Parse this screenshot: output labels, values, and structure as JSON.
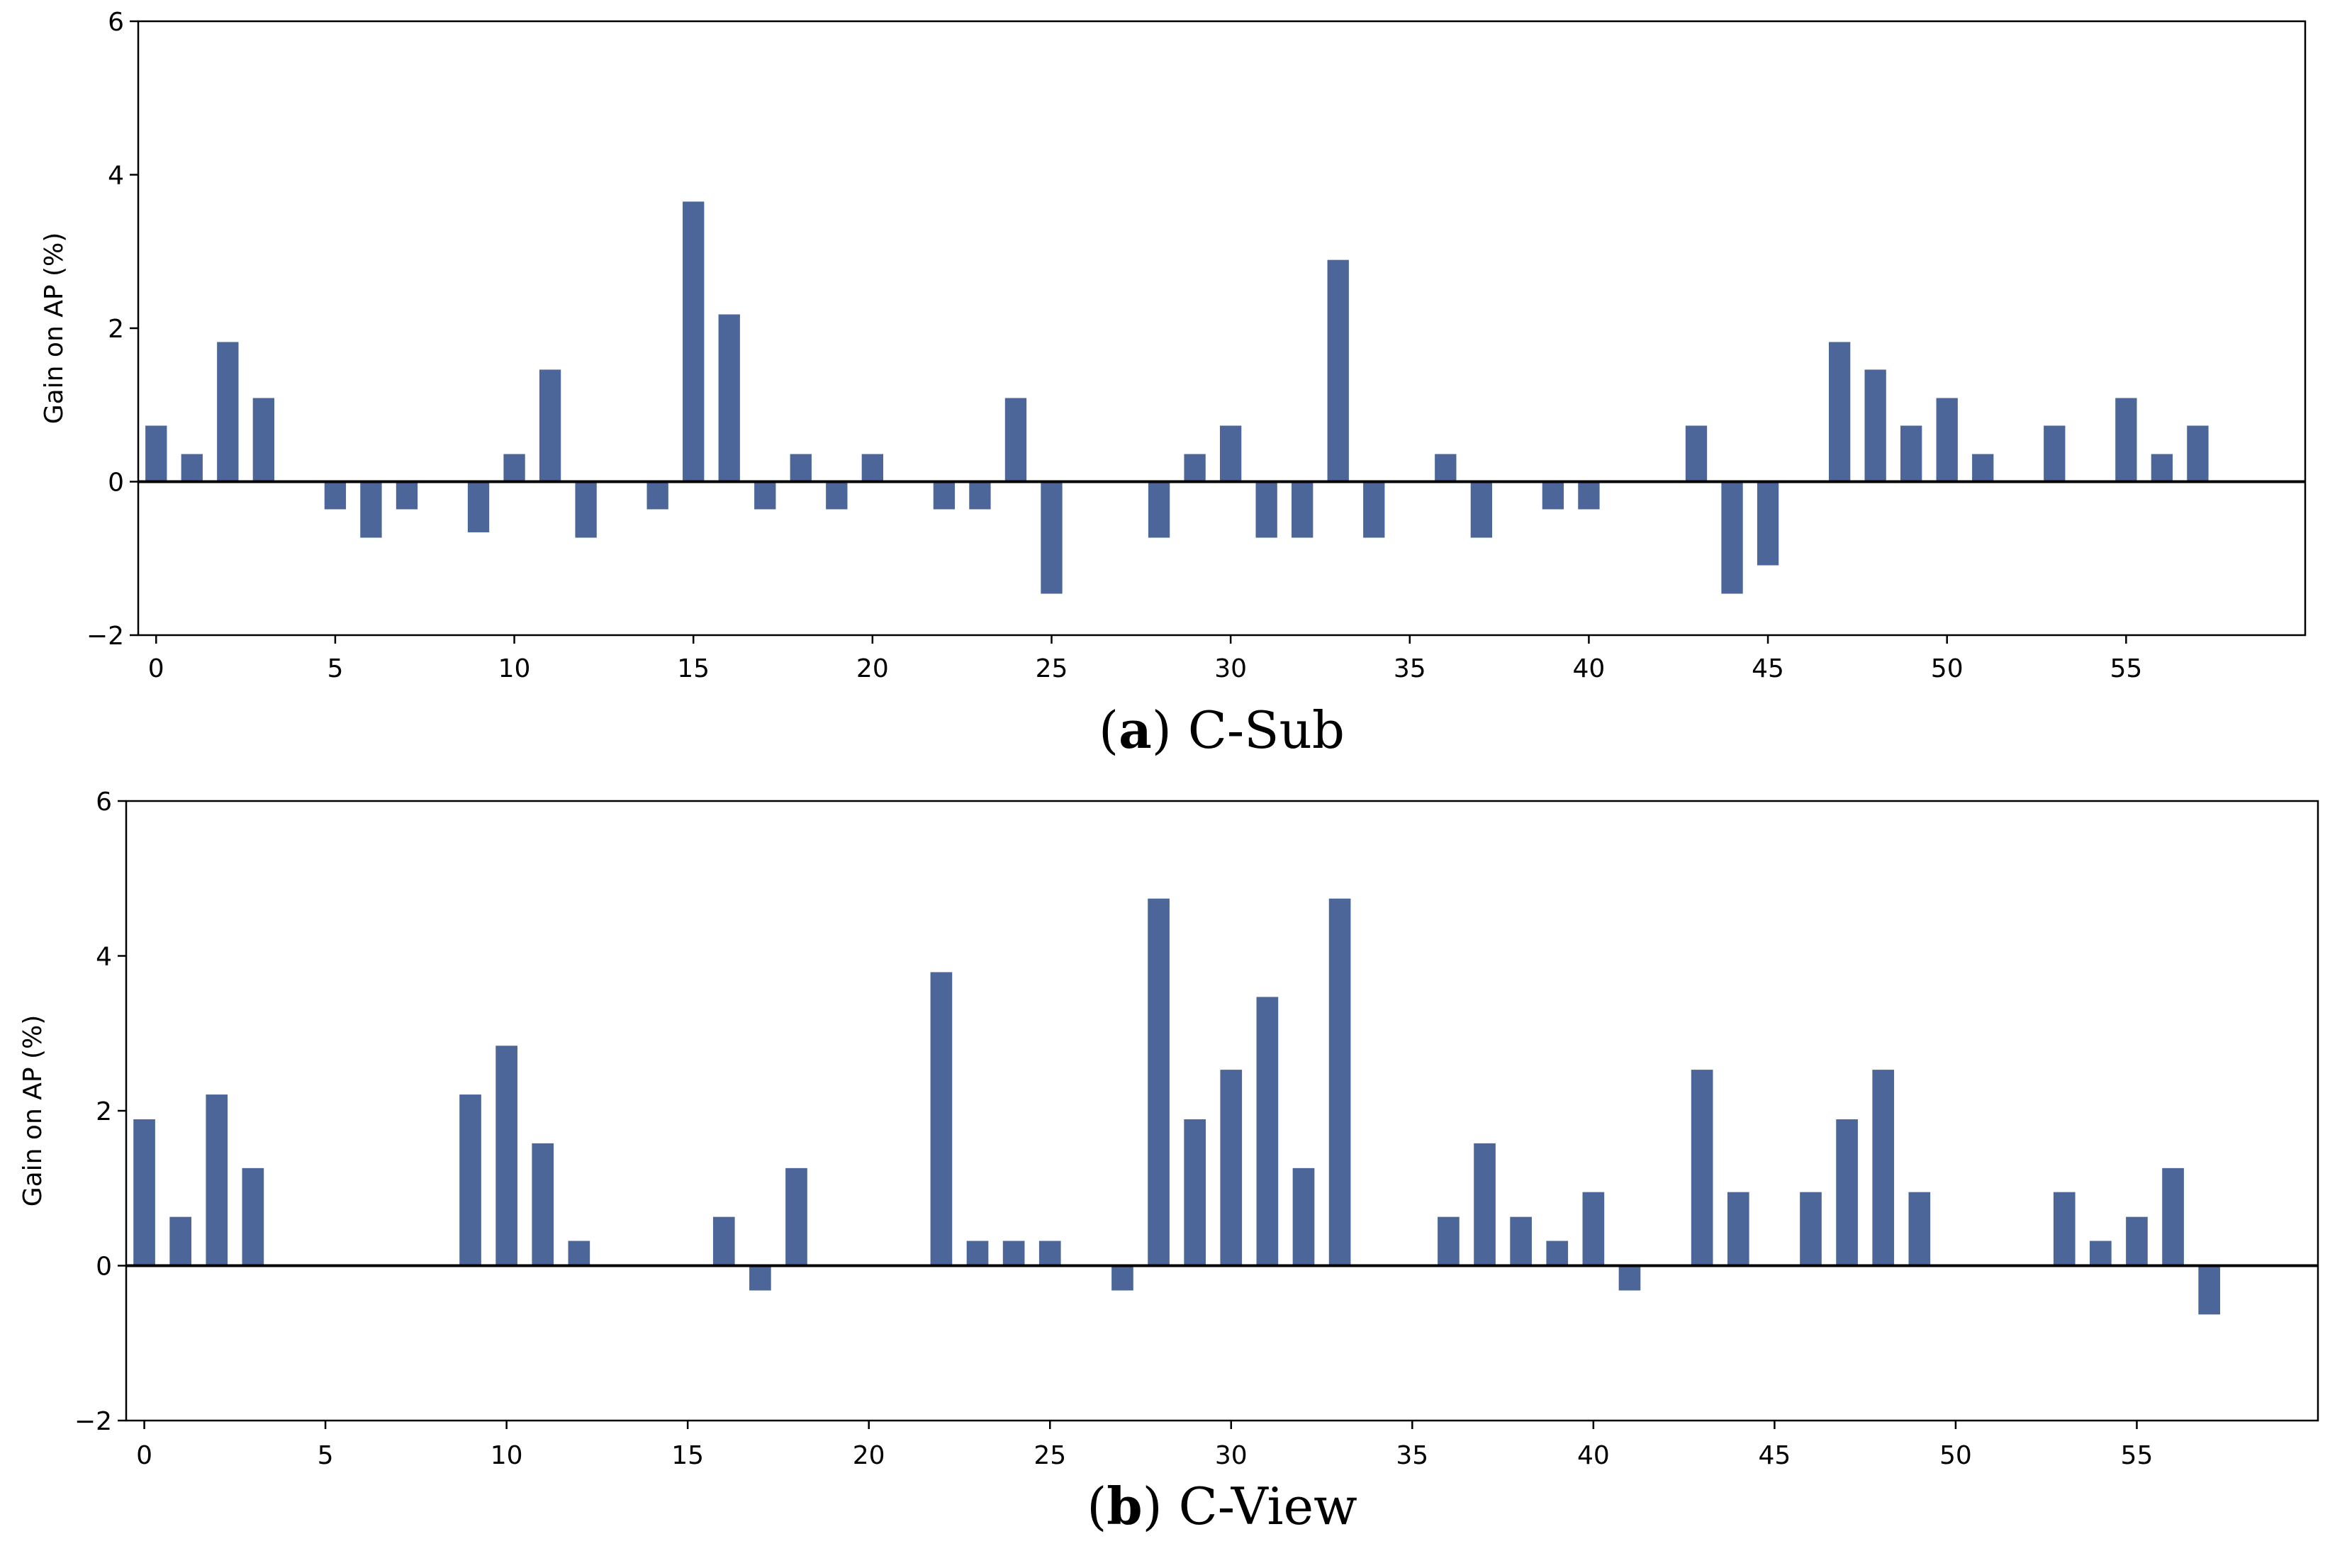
{
  "colors": {
    "bar": "#4c6699",
    "axis": "#000000",
    "background": "#ffffff"
  },
  "chart_data": [
    {
      "type": "bar",
      "caption_letter": "a",
      "caption_open": "(",
      "caption_close": ")",
      "caption_text": "C-Sub",
      "ylabel": "Gain on AP (%)",
      "xlabel": "",
      "xlim": [
        -0.5,
        60
      ],
      "ylim": [
        -2,
        6
      ],
      "yticks": [
        -2,
        0,
        2,
        4,
        6
      ],
      "ytick_labels": [
        "−2",
        "0",
        "2",
        "4",
        "6"
      ],
      "xticks": [
        0,
        5,
        10,
        15,
        20,
        25,
        30,
        35,
        40,
        45,
        50,
        55
      ],
      "xtick_labels": [
        "0",
        "5",
        "10",
        "15",
        "20",
        "25",
        "30",
        "35",
        "40",
        "45",
        "50",
        "55"
      ],
      "zero_line": true,
      "x": [
        0,
        1,
        2,
        3,
        4,
        5,
        6,
        7,
        8,
        9,
        10,
        11,
        12,
        13,
        14,
        15,
        16,
        17,
        18,
        19,
        20,
        21,
        22,
        23,
        24,
        25,
        26,
        27,
        28,
        29,
        30,
        31,
        32,
        33,
        34,
        35,
        36,
        37,
        38,
        39,
        40,
        41,
        42,
        43,
        44,
        45,
        46,
        47,
        48,
        49,
        50,
        51,
        52,
        53,
        54,
        55,
        56,
        57
      ],
      "values": [
        0.73,
        0.36,
        1.82,
        1.09,
        0,
        -0.36,
        -0.73,
        -0.36,
        0,
        -0.66,
        0.36,
        1.46,
        -0.73,
        0,
        -0.36,
        3.65,
        2.18,
        -0.36,
        0.36,
        -0.36,
        0.36,
        0,
        -0.36,
        -0.36,
        1.09,
        -1.46,
        0,
        0,
        -0.73,
        0.36,
        0.73,
        -0.73,
        -0.73,
        2.89,
        -0.73,
        0,
        0.36,
        -0.73,
        0,
        -0.36,
        -0.36,
        0,
        0,
        0.73,
        -1.46,
        -1.09,
        0,
        1.82,
        1.46,
        0.73,
        1.09,
        0.36,
        0,
        0.73,
        0,
        1.09,
        0.36,
        0.73
      ]
    },
    {
      "type": "bar",
      "caption_letter": "b",
      "caption_open": "(",
      "caption_close": ")",
      "caption_text": "C-View",
      "ylabel": "Gain on AP (%)",
      "xlabel": "",
      "xlim": [
        -0.5,
        60
      ],
      "ylim": [
        -2,
        6
      ],
      "yticks": [
        -2,
        0,
        2,
        4,
        6
      ],
      "ytick_labels": [
        "−2",
        "0",
        "2",
        "4",
        "6"
      ],
      "xticks": [
        0,
        5,
        10,
        15,
        20,
        25,
        30,
        35,
        40,
        45,
        50,
        55
      ],
      "xtick_labels": [
        "0",
        "5",
        "10",
        "15",
        "20",
        "25",
        "30",
        "35",
        "40",
        "45",
        "50",
        "55"
      ],
      "zero_line": true,
      "x": [
        0,
        1,
        2,
        3,
        4,
        5,
        6,
        7,
        8,
        9,
        10,
        11,
        12,
        13,
        14,
        15,
        16,
        17,
        18,
        19,
        20,
        21,
        22,
        23,
        24,
        25,
        26,
        27,
        28,
        29,
        30,
        31,
        32,
        33,
        34,
        35,
        36,
        37,
        38,
        39,
        40,
        41,
        42,
        43,
        44,
        45,
        46,
        47,
        48,
        49,
        50,
        51,
        52,
        53,
        54,
        55,
        56,
        57
      ],
      "values": [
        1.89,
        0.63,
        2.21,
        1.26,
        0,
        0,
        0,
        0,
        0,
        2.21,
        2.84,
        1.58,
        0.32,
        0,
        0,
        0,
        0.63,
        -0.32,
        1.26,
        0,
        0,
        0,
        3.79,
        0.32,
        0.32,
        0.32,
        0,
        -0.32,
        4.74,
        1.89,
        2.53,
        3.47,
        1.26,
        4.74,
        0,
        0,
        0.63,
        1.58,
        0.63,
        0.32,
        0.95,
        -0.32,
        0,
        2.53,
        0.95,
        0,
        0.95,
        1.89,
        2.53,
        0.95,
        0,
        0,
        0,
        0.95,
        0.32,
        0.63,
        1.26,
        -0.63
      ]
    }
  ]
}
